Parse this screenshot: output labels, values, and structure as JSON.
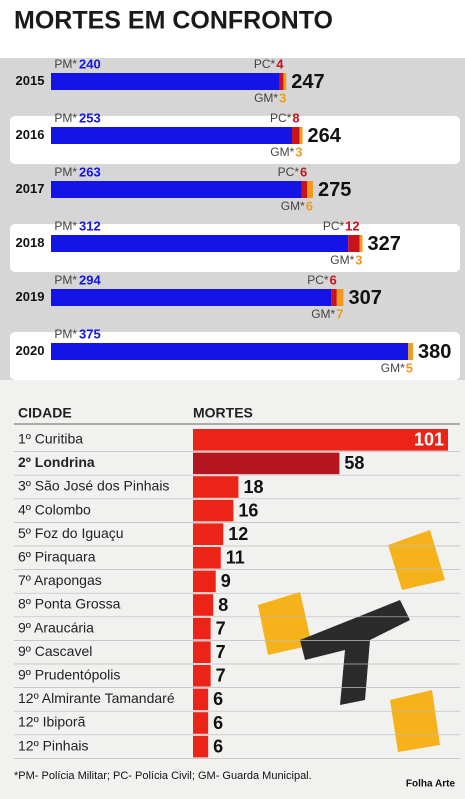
{
  "chart_data": [
    {
      "type": "stacked-bar",
      "title": "MORTES EM CONFRONTO",
      "categories": [
        "2015",
        "2016",
        "2017",
        "2018",
        "2019",
        "2020"
      ],
      "series": [
        {
          "name": "PM*",
          "color": "#1414e6",
          "values": [
            240,
            253,
            263,
            312,
            294,
            375
          ]
        },
        {
          "name": "PC*",
          "color": "#c8121c",
          "values": [
            4,
            8,
            6,
            12,
            6,
            null
          ]
        },
        {
          "name": "GM*",
          "color": "#f29a1c",
          "values": [
            3,
            3,
            6,
            3,
            7,
            5
          ]
        }
      ],
      "totals": [
        247,
        264,
        275,
        327,
        307,
        380
      ]
    },
    {
      "type": "bar",
      "x_label": "CIDADE",
      "y_label": "MORTES",
      "categories": [
        "1º Curitiba",
        "2º Londrina",
        "3º São José dos Pinhais",
        "4º Colombo",
        "5º Foz do Iguaçu",
        "6º Piraquara",
        "7º Arapongas",
        "8º Ponta Grossa",
        "9º Araucária",
        "9º Cascavel",
        "9º Prudentópolis",
        "12º Almirante Tamandaré",
        "12º Ibiporã",
        "12º Pinhais"
      ],
      "values": [
        101,
        58,
        18,
        16,
        12,
        11,
        9,
        8,
        7,
        7,
        7,
        6,
        6,
        6
      ],
      "colors": [
        "#ec2418",
        "#b3161e",
        "#ec2418",
        "#ec2418",
        "#ec2418",
        "#ec2418",
        "#ec2418",
        "#ec2418",
        "#ec2418",
        "#ec2418",
        "#ec2418",
        "#ec2418",
        "#ec2418",
        "#ec2418"
      ]
    }
  ],
  "footnote": "*PM- Polícia Militar; PC- Polícia Civil; GM- Guarda Municipal.",
  "source": "Folha Arte"
}
